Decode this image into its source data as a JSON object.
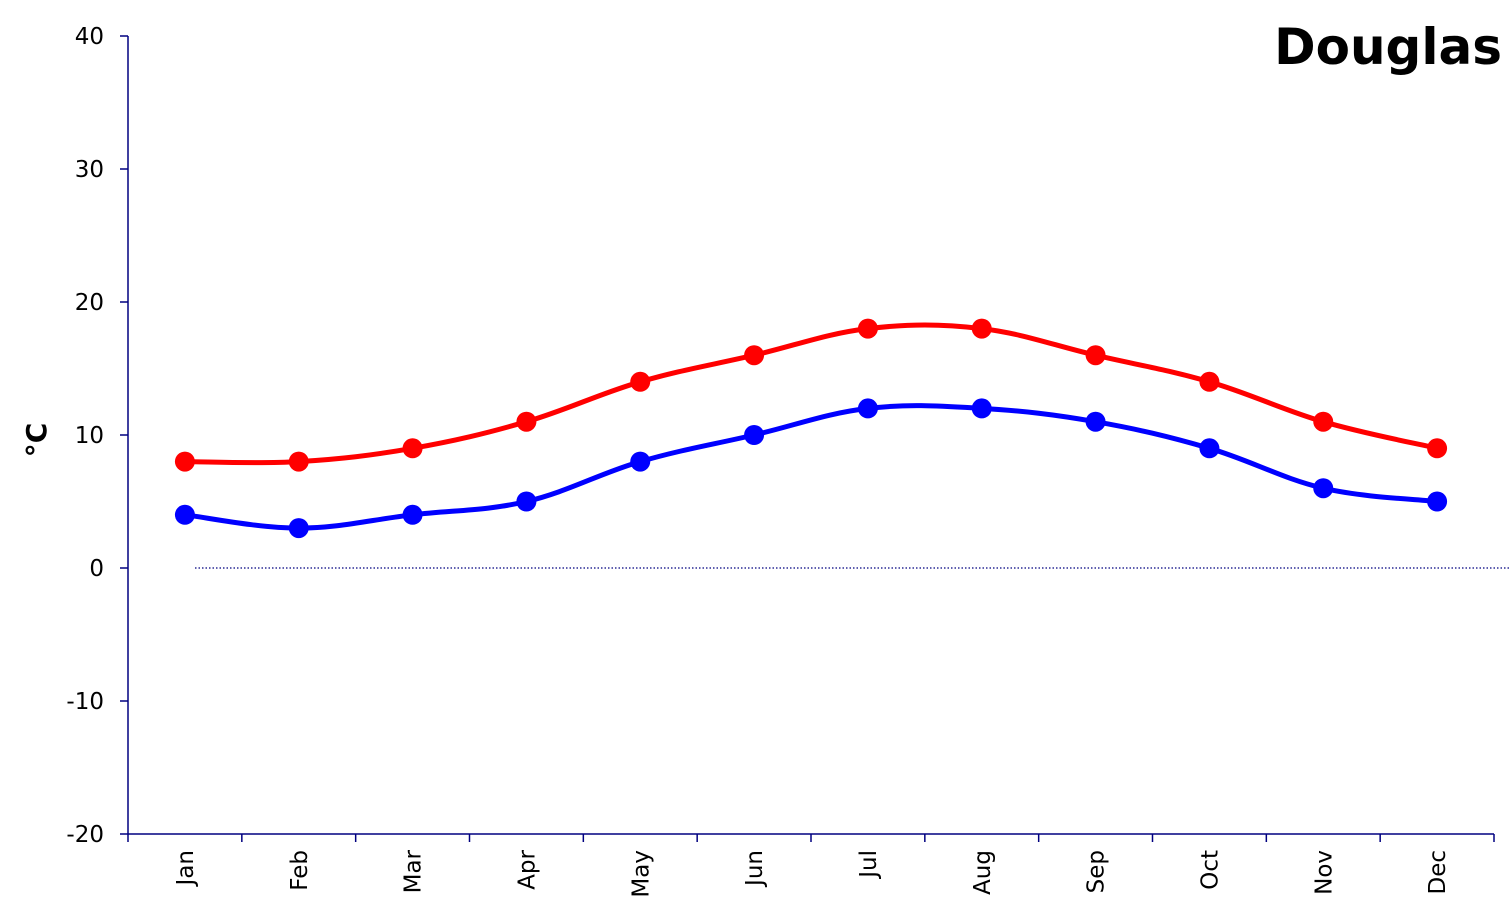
{
  "chart_data": {
    "type": "line",
    "title": "Douglas",
    "xlabel": "",
    "ylabel": "°C",
    "ylim": [
      -20,
      40
    ],
    "yticks": [
      40,
      30,
      20,
      10,
      0,
      -10,
      -20
    ],
    "categories": [
      "Jan",
      "Feb",
      "Mar",
      "Apr",
      "May",
      "Jun",
      "Jul",
      "Aug",
      "Sep",
      "Oct",
      "Nov",
      "Dec"
    ],
    "series": [
      {
        "color": "#ff0000",
        "values": [
          8,
          8,
          9,
          11,
          14,
          16,
          18,
          18,
          16,
          14,
          11,
          9
        ]
      },
      {
        "color": "#0000ff",
        "values": [
          4,
          3,
          4,
          5,
          8,
          10,
          12,
          12,
          11,
          9,
          6,
          5
        ]
      }
    ],
    "zero_line": "dotted",
    "grid": false
  }
}
